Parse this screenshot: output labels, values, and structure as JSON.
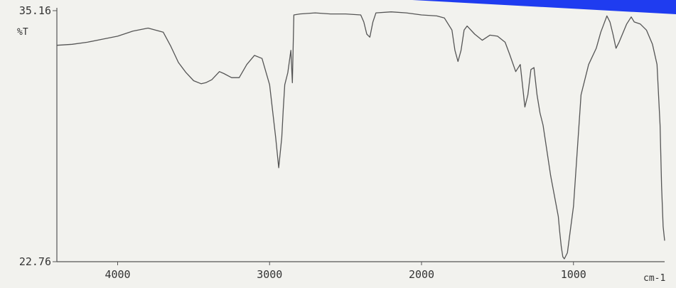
{
  "chart_data": {
    "type": "line",
    "title": "",
    "xlabel": "cm-1",
    "ylabel": "%T",
    "xlim": [
      4400,
      400
    ],
    "ylim": [
      22.76,
      35.16
    ],
    "grid": false,
    "legend": "none",
    "y_ticks": [
      "35.16",
      "22.76"
    ],
    "x_ticks": [
      4000,
      3000,
      2000,
      1000
    ],
    "x_tick_labels": [
      "4000",
      "3000",
      "2000",
      "1000"
    ],
    "series": [
      {
        "color": "#555555",
        "x": [
          4400,
          4300,
          4200,
          4100,
          4000,
          3900,
          3800,
          3700,
          3650,
          3600,
          3550,
          3500,
          3450,
          3420,
          3380,
          3330,
          3300,
          3250,
          3200,
          3150,
          3100,
          3050,
          3000,
          2960,
          2940,
          2920,
          2910,
          2900,
          2880,
          2860,
          2850,
          2840,
          2800,
          2700,
          2600,
          2500,
          2400,
          2380,
          2360,
          2340,
          2320,
          2300,
          2200,
          2100,
          2000,
          1900,
          1850,
          1800,
          1780,
          1760,
          1740,
          1720,
          1700,
          1650,
          1600,
          1550,
          1500,
          1450,
          1420,
          1380,
          1350,
          1320,
          1300,
          1280,
          1260,
          1240,
          1220,
          1200,
          1150,
          1100,
          1090,
          1080,
          1070,
          1060,
          1040,
          1000,
          950,
          900,
          850,
          820,
          800,
          780,
          760,
          740,
          720,
          700,
          650,
          620,
          600,
          560,
          520,
          480,
          450,
          430,
          420,
          410,
          400
        ],
        "y": [
          33.45,
          33.5,
          33.6,
          33.75,
          33.9,
          34.15,
          34.3,
          34.1,
          33.4,
          32.6,
          32.1,
          31.7,
          31.55,
          31.6,
          31.75,
          32.15,
          32.05,
          31.85,
          31.85,
          32.5,
          32.95,
          32.8,
          31.5,
          28.9,
          27.4,
          28.9,
          30.3,
          31.5,
          32.1,
          33.2,
          31.6,
          34.95,
          35.0,
          35.05,
          35.0,
          35.0,
          34.95,
          34.6,
          34.0,
          33.85,
          34.6,
          35.05,
          35.1,
          35.05,
          34.95,
          34.9,
          34.8,
          34.2,
          33.2,
          32.65,
          33.2,
          34.2,
          34.4,
          34.0,
          33.7,
          33.95,
          33.9,
          33.6,
          33.0,
          32.15,
          32.5,
          30.4,
          31.0,
          32.25,
          32.35,
          31.0,
          30.1,
          29.5,
          27.0,
          25.0,
          24.2,
          23.5,
          23.0,
          22.9,
          23.2,
          25.5,
          31.0,
          32.5,
          33.3,
          34.1,
          34.5,
          34.9,
          34.6,
          34.0,
          33.3,
          33.6,
          34.5,
          34.85,
          34.6,
          34.5,
          34.2,
          33.5,
          32.5,
          29.5,
          26.5,
          24.5,
          23.8
        ]
      }
    ]
  }
}
